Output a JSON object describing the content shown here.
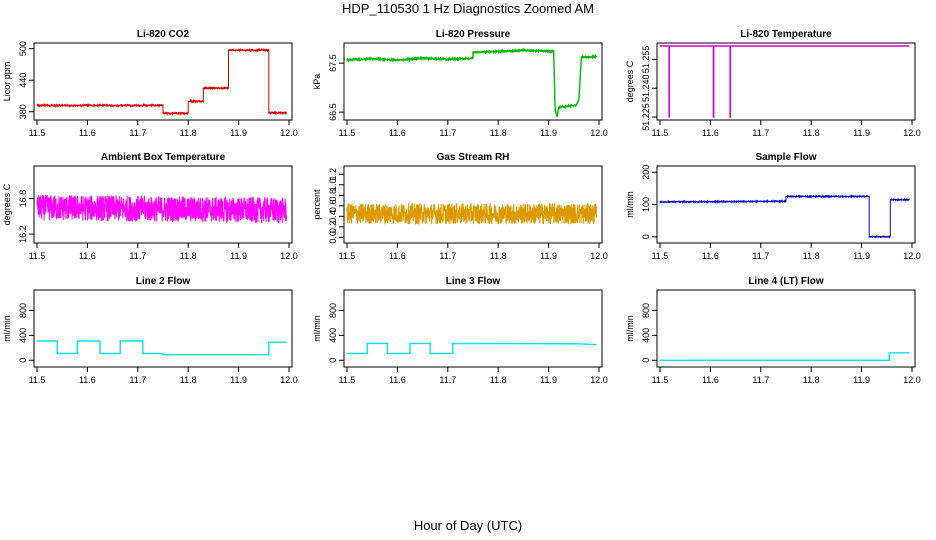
{
  "figure": {
    "title": "HDP_110530  1 Hz Diagnostics Zoomed AM",
    "xlabel": "Hour of Day (UTC)"
  },
  "chart_data": [
    {
      "type": "line",
      "title": "Li-820 CO2",
      "ylabel": "Licor ppm",
      "color": "#dd0000",
      "xlim": [
        11.5,
        12.0
      ],
      "ylim": [
        370,
        505
      ],
      "x_ticks": [
        "11.5",
        "11.6",
        "11.7",
        "11.8",
        "11.9",
        "12.0"
      ],
      "y_ticks": [
        "380",
        "440",
        "500"
      ],
      "y_tick_values": [
        380,
        440,
        500
      ],
      "noise": 1.5,
      "x": [
        11.5,
        11.75,
        11.75,
        11.8,
        11.8,
        11.83,
        11.83,
        11.88,
        11.88,
        11.96,
        11.96,
        11.995
      ],
      "y": [
        392,
        392,
        377,
        377,
        400,
        400,
        425,
        425,
        497,
        497,
        378,
        378
      ]
    },
    {
      "type": "line",
      "title": "Li-820 Pressure",
      "ylabel": "kPa",
      "color": "#00bb00",
      "xlim": [
        11.5,
        12.0
      ],
      "ylim": [
        66.4,
        67.85
      ],
      "x_ticks": [
        "11.5",
        "11.6",
        "11.7",
        "11.8",
        "11.9",
        "12.0"
      ],
      "y_ticks": [
        "66.5",
        "67.5"
      ],
      "y_tick_values": [
        66.5,
        67.5
      ],
      "noise": 0.01,
      "x": [
        11.5,
        11.55,
        11.6,
        11.65,
        11.7,
        11.75,
        11.75,
        11.8,
        11.85,
        11.91,
        11.913,
        11.917,
        11.92,
        11.955,
        11.96,
        11.965,
        11.995
      ],
      "y": [
        67.57,
        67.59,
        67.56,
        67.6,
        67.58,
        67.6,
        67.72,
        67.74,
        67.76,
        67.74,
        66.55,
        66.4,
        66.6,
        66.64,
        66.75,
        67.62,
        67.63
      ]
    },
    {
      "type": "line",
      "title": "Li-820 Temperature",
      "ylabel": "degrees C",
      "color": "#dd00dd",
      "xlim": [
        11.5,
        12.0
      ],
      "ylim": [
        51.225,
        51.262
      ],
      "x_ticks": [
        "11.5",
        "11.6",
        "11.7",
        "11.8",
        "11.9",
        "12.0"
      ],
      "y_ticks": [
        "51.225",
        "51.240",
        "51.255"
      ],
      "y_tick_values": [
        51.225,
        51.24,
        51.255
      ],
      "noise": 0,
      "x": [
        11.5,
        11.518,
        11.518,
        11.5185,
        11.5185,
        11.606,
        11.606,
        11.6065,
        11.6065,
        11.639,
        11.639,
        11.6395,
        11.6395,
        11.995
      ],
      "y": [
        51.262,
        51.262,
        51.225,
        51.225,
        51.262,
        51.262,
        51.225,
        51.225,
        51.262,
        51.262,
        51.225,
        51.225,
        51.262,
        51.262
      ]
    },
    {
      "type": "line",
      "title": "Ambient Box Temperature",
      "ylabel": "degrees C",
      "color": "#ff00ff",
      "xlim": [
        11.5,
        12.0
      ],
      "ylim": [
        16.1,
        17.3
      ],
      "x_ticks": [
        "11.5",
        "11.6",
        "11.7",
        "11.8",
        "11.9",
        "12.0"
      ],
      "y_ticks": [
        "16.2",
        "16.8"
      ],
      "y_tick_values": [
        16.2,
        16.8
      ],
      "noise": 0.22,
      "x": [
        11.5,
        11.995
      ],
      "y": [
        16.65,
        16.6
      ]
    },
    {
      "type": "line",
      "title": "Gas Stream RH",
      "ylabel": "percent",
      "color": "#dd9900",
      "xlim": [
        11.5,
        12.0
      ],
      "ylim": [
        -0.05,
        1.3
      ],
      "x_ticks": [
        "11.5",
        "11.6",
        "11.7",
        "11.8",
        "11.9",
        "12.0"
      ],
      "y_ticks": [
        "0.0",
        "0.2",
        "0.4",
        "0.6",
        "0.8",
        "1.0",
        "1.2"
      ],
      "y_tick_values": [
        0.0,
        0.2,
        0.4,
        0.6,
        0.8,
        1.0,
        1.2
      ],
      "noise": 0.2,
      "x": [
        11.5,
        11.995
      ],
      "y": [
        0.45,
        0.45
      ]
    },
    {
      "type": "line",
      "title": "Sample Flow",
      "ylabel": "ml/min",
      "color": "#0000cc",
      "xlim": [
        11.5,
        12.0
      ],
      "ylim": [
        -10,
        210
      ],
      "x_ticks": [
        "11.5",
        "11.6",
        "11.7",
        "11.8",
        "11.9",
        "12.0"
      ],
      "y_ticks": [
        "0",
        "100",
        "200"
      ],
      "y_tick_values": [
        0,
        100,
        200
      ],
      "noise": 1.5,
      "x": [
        11.5,
        11.75,
        11.75,
        11.915,
        11.915,
        11.957,
        11.957,
        11.995
      ],
      "y": [
        108,
        110,
        125,
        125,
        0,
        0,
        115,
        115
      ]
    },
    {
      "type": "line",
      "title": "Line 2 Flow",
      "ylabel": "ml/min",
      "color": "#00e5ee",
      "xlim": [
        11.5,
        12.0
      ],
      "ylim": [
        -60,
        1080
      ],
      "x_ticks": [
        "11.5",
        "11.6",
        "11.7",
        "11.8",
        "11.9",
        "12.0"
      ],
      "y_ticks": [
        "0",
        "400",
        "800"
      ],
      "y_tick_values": [
        0,
        400,
        800
      ],
      "noise": 0,
      "x": [
        11.5,
        11.54,
        11.54,
        11.58,
        11.58,
        11.625,
        11.625,
        11.665,
        11.665,
        11.71,
        11.71,
        11.75,
        11.75,
        11.96,
        11.96,
        11.995
      ],
      "y": [
        310,
        310,
        110,
        110,
        310,
        310,
        110,
        110,
        310,
        310,
        110,
        110,
        90,
        90,
        290,
        290
      ]
    },
    {
      "type": "line",
      "title": "Line 3 Flow",
      "ylabel": "ml/min",
      "color": "#00e5ee",
      "xlim": [
        11.5,
        12.0
      ],
      "ylim": [
        -60,
        1080
      ],
      "x_ticks": [
        "11.5",
        "11.6",
        "11.7",
        "11.8",
        "11.9",
        "12.0"
      ],
      "y_ticks": [
        "0",
        "400",
        "800"
      ],
      "y_tick_values": [
        0,
        400,
        800
      ],
      "noise": 0,
      "x": [
        11.5,
        11.54,
        11.54,
        11.58,
        11.58,
        11.625,
        11.625,
        11.665,
        11.665,
        11.71,
        11.71,
        11.96,
        11.995
      ],
      "y": [
        110,
        110,
        270,
        270,
        110,
        110,
        270,
        270,
        110,
        110,
        270,
        265,
        250
      ]
    },
    {
      "type": "line",
      "title": "Line 4 (LT) Flow",
      "ylabel": "ml/min",
      "color": "#00e5ee",
      "xlim": [
        11.5,
        12.0
      ],
      "ylim": [
        -60,
        1080
      ],
      "x_ticks": [
        "11.5",
        "11.6",
        "11.7",
        "11.8",
        "11.9",
        "12.0"
      ],
      "y_ticks": [
        "0",
        "400",
        "800"
      ],
      "y_tick_values": [
        0,
        400,
        800
      ],
      "noise": 0,
      "x": [
        11.5,
        11.955,
        11.955,
        11.995
      ],
      "y": [
        0,
        0,
        120,
        120
      ]
    }
  ]
}
